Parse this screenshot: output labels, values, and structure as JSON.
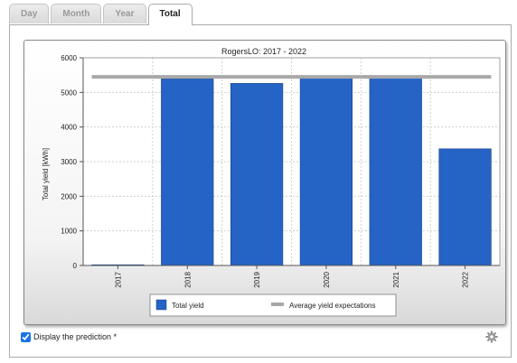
{
  "tabs": [
    {
      "label": "Day",
      "active": false
    },
    {
      "label": "Month",
      "active": false
    },
    {
      "label": "Year",
      "active": false
    },
    {
      "label": "Total",
      "active": true
    }
  ],
  "prediction": {
    "label": "Display the prediction *",
    "checked": true
  },
  "settings_icon": "gear-icon",
  "chart_data": {
    "type": "bar",
    "title": "RogersLO: 2017 - 2022",
    "xlabel": "",
    "ylabel": "Total yield [kWh]",
    "ylim": [
      0,
      6000
    ],
    "yticks": [
      0,
      1000,
      2000,
      3000,
      4000,
      5000,
      6000
    ],
    "categories": [
      "2017",
      "2018",
      "2019",
      "2020",
      "2021",
      "2022"
    ],
    "series": [
      {
        "name": "Total yield",
        "type": "bar",
        "color": "#2563c4",
        "values": [
          20,
          5390,
          5260,
          5460,
          5480,
          3370
        ]
      },
      {
        "name": "Average yield expectations",
        "type": "line",
        "color": "#a8a8a8",
        "values": [
          5450,
          5450,
          5450,
          5450,
          5450,
          5450
        ]
      }
    ],
    "grid": true,
    "legend": "bottom"
  }
}
